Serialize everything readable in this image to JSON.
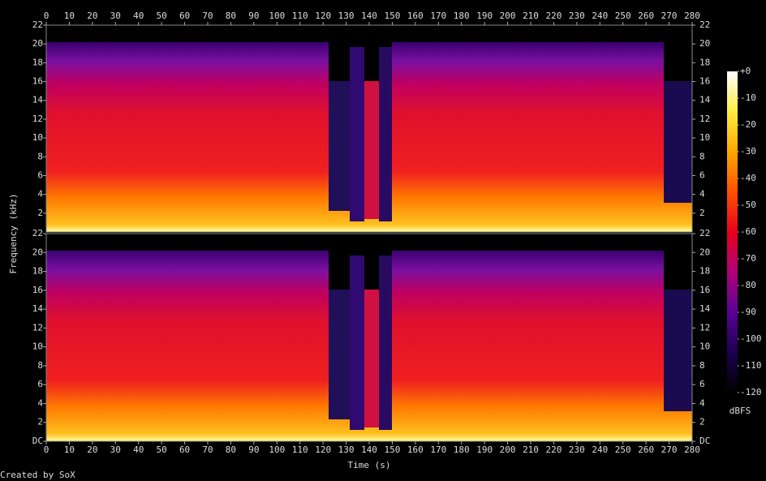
{
  "chart_data": {
    "type": "spectrogram",
    "xlabel": "Time (s)",
    "ylabel": "Frequency (kHz)",
    "credit": "Created by SoX",
    "xlim": [
      0,
      280
    ],
    "xticks": [
      0,
      10,
      20,
      30,
      40,
      50,
      60,
      70,
      80,
      90,
      100,
      110,
      120,
      130,
      140,
      150,
      160,
      170,
      180,
      190,
      200,
      210,
      220,
      230,
      240,
      250,
      260,
      270,
      280
    ],
    "channels": [
      {
        "ylim": [
          0,
          22
        ],
        "yticks": [
          2,
          4,
          6,
          8,
          10,
          12,
          14,
          16,
          18,
          20,
          22
        ]
      },
      {
        "ylim": [
          0,
          22
        ],
        "yticks": [
          {
            "value": 0,
            "label": "DC"
          },
          2,
          4,
          6,
          8,
          10,
          12,
          14,
          16,
          18,
          20,
          22
        ]
      }
    ],
    "colorbar": {
      "label": "dBFS",
      "lim": [
        -120,
        0
      ],
      "ticks": [
        {
          "value": 0,
          "label": "+0"
        },
        -10,
        -20,
        -30,
        -40,
        -50,
        -60,
        -70,
        -80,
        -90,
        -100,
        -110,
        -120
      ],
      "colormap": [
        "#000000",
        "#1c0050",
        "#5a0096",
        "#b0007a",
        "#e8001c",
        "#ff5000",
        "#ffa800",
        "#ffec40",
        "#ffffff"
      ]
    }
  }
}
